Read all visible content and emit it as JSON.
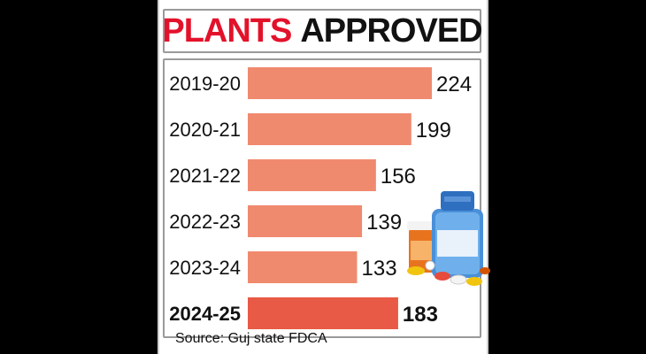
{
  "title_red": "PLANTS",
  "title_black": "APPROVED",
  "source": "Source: Guj state FDCA",
  "colors": {
    "title_red": "#e3122b",
    "bar": "#f08a6e",
    "bar_highlight": "#e85a45",
    "text": "#111111"
  },
  "chart_data": {
    "type": "bar",
    "orientation": "horizontal",
    "categories": [
      "2019-20",
      "2020-21",
      "2021-22",
      "2022-23",
      "2023-24",
      "2024-25"
    ],
    "values": [
      224,
      199,
      156,
      139,
      133,
      183
    ],
    "highlight_index": 5,
    "xlim": [
      0,
      224
    ],
    "grid": false,
    "data_labels": true
  }
}
